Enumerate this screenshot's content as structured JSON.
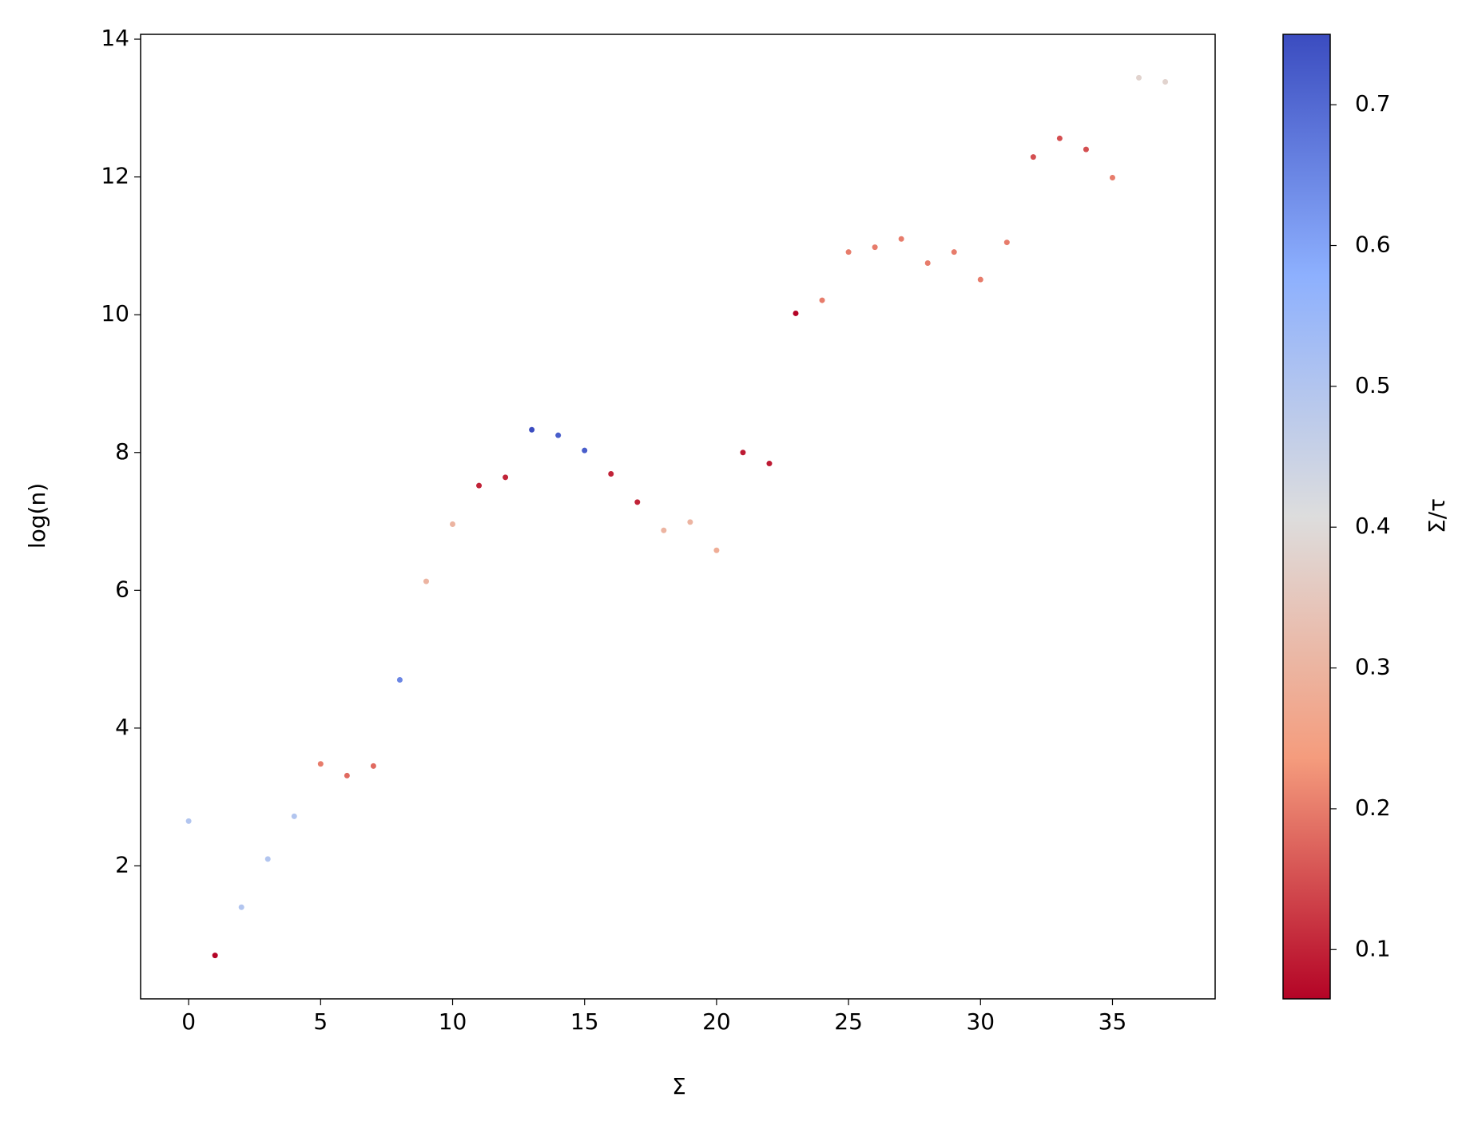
{
  "chart_data": {
    "type": "scatter",
    "x_label": "Σ",
    "y_label": "log(n)",
    "colorbar_label": "Σ/τ",
    "x": [
      0,
      1,
      2,
      3,
      4,
      5,
      6,
      7,
      8,
      9,
      10,
      11,
      12,
      13,
      14,
      15,
      16,
      17,
      18,
      19,
      20,
      21,
      22,
      23,
      24,
      25,
      26,
      27,
      28,
      29,
      30,
      31,
      32,
      33,
      34,
      35,
      36,
      37
    ],
    "y": [
      2.65,
      0.7,
      1.4,
      2.1,
      2.72,
      3.48,
      3.31,
      3.45,
      4.7,
      6.13,
      6.96,
      7.52,
      7.64,
      8.33,
      8.25,
      8.03,
      7.69,
      7.28,
      6.87,
      6.99,
      6.58,
      8.0,
      7.84,
      10.02,
      10.21,
      10.91,
      10.98,
      11.1,
      10.75,
      10.91,
      10.51,
      11.05,
      12.29,
      12.56,
      12.4,
      11.99,
      13.44,
      13.38
    ],
    "c": [
      0.5,
      0.065,
      0.5,
      0.5,
      0.5,
      0.2,
      0.18,
      0.18,
      0.65,
      0.3,
      0.3,
      0.1,
      0.1,
      0.75,
      0.72,
      0.72,
      0.1,
      0.1,
      0.3,
      0.3,
      0.28,
      0.09,
      0.09,
      0.065,
      0.2,
      0.2,
      0.2,
      0.2,
      0.2,
      0.2,
      0.2,
      0.2,
      0.15,
      0.15,
      0.15,
      0.2,
      0.38,
      0.38
    ],
    "colormap": "coolwarm_r",
    "clim": [
      0.065,
      0.75
    ],
    "cticks": [
      0.1,
      0.2,
      0.3,
      0.4,
      0.5,
      0.6,
      0.7
    ],
    "xlim": [
      -1.82,
      38.89
    ],
    "ylim": [
      0.07,
      14.07
    ],
    "xticks": [
      0,
      5,
      10,
      15,
      20,
      25,
      30,
      35
    ],
    "yticks": [
      2,
      4,
      6,
      8,
      10,
      12,
      14
    ]
  }
}
